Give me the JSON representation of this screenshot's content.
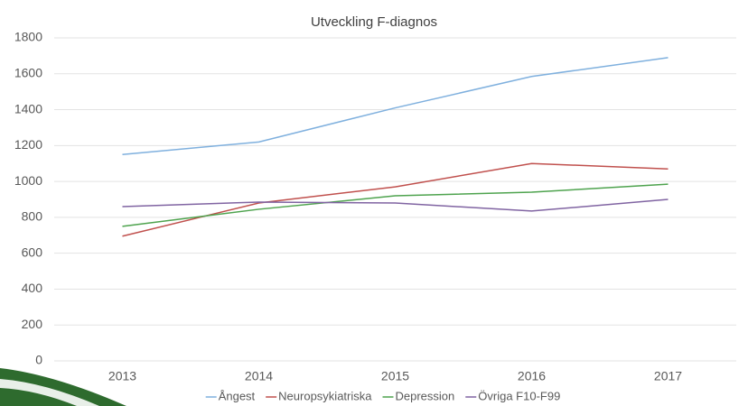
{
  "chart_data": {
    "type": "line",
    "title": "Utveckling F-diagnos",
    "categories": [
      "2013",
      "2014",
      "2015",
      "2016",
      "2017"
    ],
    "series": [
      {
        "name": "Ångest",
        "color": "#7fb0de",
        "values": [
          1150,
          1220,
          1410,
          1585,
          1690
        ]
      },
      {
        "name": "Neuropsykiatriska",
        "color": "#c0504d",
        "values": [
          695,
          880,
          970,
          1100,
          1070
        ]
      },
      {
        "name": "Depression",
        "color": "#4ea34e",
        "values": [
          750,
          845,
          920,
          940,
          985
        ]
      },
      {
        "name": "Övriga F10-F99",
        "color": "#8064a2",
        "values": [
          860,
          885,
          880,
          835,
          900
        ]
      }
    ],
    "ylim": [
      0,
      1800
    ],
    "yticks": [
      0,
      200,
      400,
      600,
      800,
      1000,
      1200,
      1400,
      1600,
      1800
    ],
    "grid": true,
    "legend": "bottom"
  }
}
